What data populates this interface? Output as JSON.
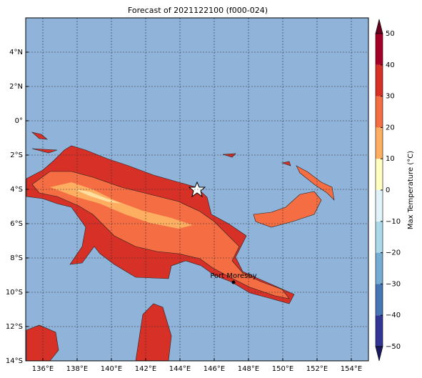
{
  "chart_data": {
    "type": "map",
    "title": "Forecast of 2021122100 (f000-024)",
    "xlim": [
      135,
      155
    ],
    "ylim": [
      -14,
      6
    ],
    "xticks": [
      {
        "value": 136,
        "label": "136°E"
      },
      {
        "value": 138,
        "label": "138°E"
      },
      {
        "value": 140,
        "label": "140°E"
      },
      {
        "value": 142,
        "label": "142°E"
      },
      {
        "value": 144,
        "label": "144°E"
      },
      {
        "value": 146,
        "label": "146°E"
      },
      {
        "value": 148,
        "label": "148°E"
      },
      {
        "value": 150,
        "label": "150°E"
      },
      {
        "value": 152,
        "label": "152°E"
      },
      {
        "value": 154,
        "label": "154°E"
      }
    ],
    "yticks": [
      {
        "value": 4,
        "label": "4°N"
      },
      {
        "value": 2,
        "label": "2°N"
      },
      {
        "value": 0,
        "label": "0°"
      },
      {
        "value": -2,
        "label": "2°S"
      },
      {
        "value": -4,
        "label": "4°S"
      },
      {
        "value": -6,
        "label": "6°S"
      },
      {
        "value": -8,
        "label": "8°S"
      },
      {
        "value": -10,
        "label": "10°S"
      },
      {
        "value": -12,
        "label": "12°S"
      },
      {
        "value": -14,
        "label": "14°S"
      }
    ],
    "grid": true,
    "city": "Port Moresby",
    "colorbar": {
      "label": "Max Temperature (°C)",
      "ticks": [
        {
          "value": -50,
          "label": "−50"
        },
        {
          "value": -40,
          "label": "−40"
        },
        {
          "value": -30,
          "label": "−30"
        },
        {
          "value": -20,
          "label": "−20"
        },
        {
          "value": -10,
          "label": "−10"
        },
        0,
        10,
        20,
        30,
        40,
        50
      ],
      "colors": [
        "#313695",
        "#4575b4",
        "#74add1",
        "#abd9e9",
        "#e0f3f8",
        "#ffffbf",
        "#fdae61",
        "#f46d43",
        "#d73027",
        "#a50026"
      ],
      "extend_colors": [
        "#1a1a5e",
        "#67001f"
      ]
    }
  }
}
